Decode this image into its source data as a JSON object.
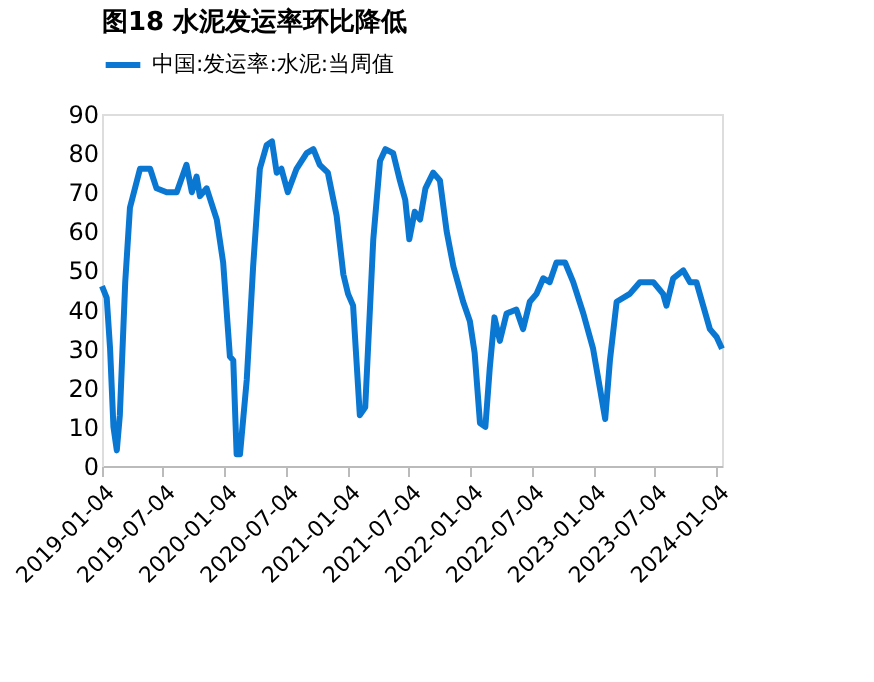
{
  "chart_data": {
    "type": "line",
    "title": "图18 水泥发运率环比降低",
    "legend": "top",
    "x": [
      "2019-01-04",
      "2019-01-18",
      "2019-01-28",
      "2019-02-07",
      "2019-02-17",
      "2019-02-26",
      "2019-03-14",
      "2019-03-28",
      "2019-04-27",
      "2019-05-27",
      "2019-06-15",
      "2019-07-15",
      "2019-08-14",
      "2019-09-12",
      "2019-09-28",
      "2019-10-12",
      "2019-10-22",
      "2019-11-11",
      "2019-12-11",
      "2019-12-30",
      "2020-01-19",
      "2020-01-29",
      "2020-02-08",
      "2020-02-18",
      "2020-03-09",
      "2020-03-28",
      "2020-04-17",
      "2020-05-07",
      "2020-05-23",
      "2020-06-06",
      "2020-06-20",
      "2020-07-09",
      "2020-08-04",
      "2020-09-03",
      "2020-09-23",
      "2020-10-12",
      "2020-11-05",
      "2020-12-01",
      "2020-12-21",
      "2021-01-04",
      "2021-01-19",
      "2021-02-08",
      "2021-02-24",
      "2021-03-20",
      "2021-04-09",
      "2021-04-25",
      "2021-05-18",
      "2021-06-07",
      "2021-06-23",
      "2021-07-05",
      "2021-07-21",
      "2021-08-06",
      "2021-08-22",
      "2021-09-14",
      "2021-10-04",
      "2021-10-24",
      "2021-11-13",
      "2021-12-12",
      "2022-01-01",
      "2022-01-15",
      "2022-01-31",
      "2022-02-16",
      "2022-03-01",
      "2022-03-15",
      "2022-03-31",
      "2022-04-20",
      "2022-05-19",
      "2022-06-08",
      "2022-06-28",
      "2022-07-18",
      "2022-08-07",
      "2022-08-26",
      "2022-09-15",
      "2022-10-11",
      "2022-11-04",
      "2022-12-04",
      "2023-01-02",
      "2023-01-22",
      "2023-02-07",
      "2023-02-21",
      "2023-03-13",
      "2023-04-21",
      "2023-05-21",
      "2023-06-30",
      "2023-07-29",
      "2023-08-08",
      "2023-08-28",
      "2023-09-27",
      "2023-10-17",
      "2023-11-05",
      "2023-11-25",
      "2023-12-15",
      "2024-01-04",
      "2024-01-20"
    ],
    "series": [
      {
        "name": "中国:发运率:水泥:当周值",
        "color": "#0a78d2",
        "values": [
          46,
          43,
          30,
          10,
          4,
          13,
          47,
          66,
          76,
          76,
          71,
          70,
          70,
          77,
          70,
          74,
          69,
          71,
          63,
          52,
          28,
          27,
          3,
          3,
          22,
          51,
          76,
          82,
          83,
          75,
          76,
          70,
          76,
          80,
          81,
          77,
          75,
          64,
          49,
          44,
          41,
          13,
          15,
          58,
          78,
          81,
          80,
          73,
          68,
          58,
          65,
          63,
          71,
          75,
          73,
          60,
          51,
          42,
          37,
          29,
          11,
          10,
          25,
          38,
          32,
          39,
          40,
          35,
          42,
          44,
          48,
          47,
          52,
          52,
          47,
          39,
          30,
          20,
          12,
          27,
          42,
          44,
          47,
          47,
          44,
          41,
          48,
          50,
          47,
          47,
          41,
          35,
          33,
          30
        ]
      }
    ],
    "xlim": [
      "2019-01-04",
      "2024-01-20"
    ],
    "xticks": [
      "2019-01-04",
      "2019-07-04",
      "2020-01-04",
      "2020-07-04",
      "2021-01-04",
      "2021-07-04",
      "2022-01-04",
      "2022-07-04",
      "2023-01-04",
      "2023-07-04",
      "2024-01-04"
    ],
    "ylim": [
      0,
      90
    ],
    "yticks": [
      0,
      10,
      20,
      30,
      40,
      50,
      60,
      70,
      80,
      90
    ],
    "grid": false,
    "marker": "none",
    "line_style": "solid"
  }
}
